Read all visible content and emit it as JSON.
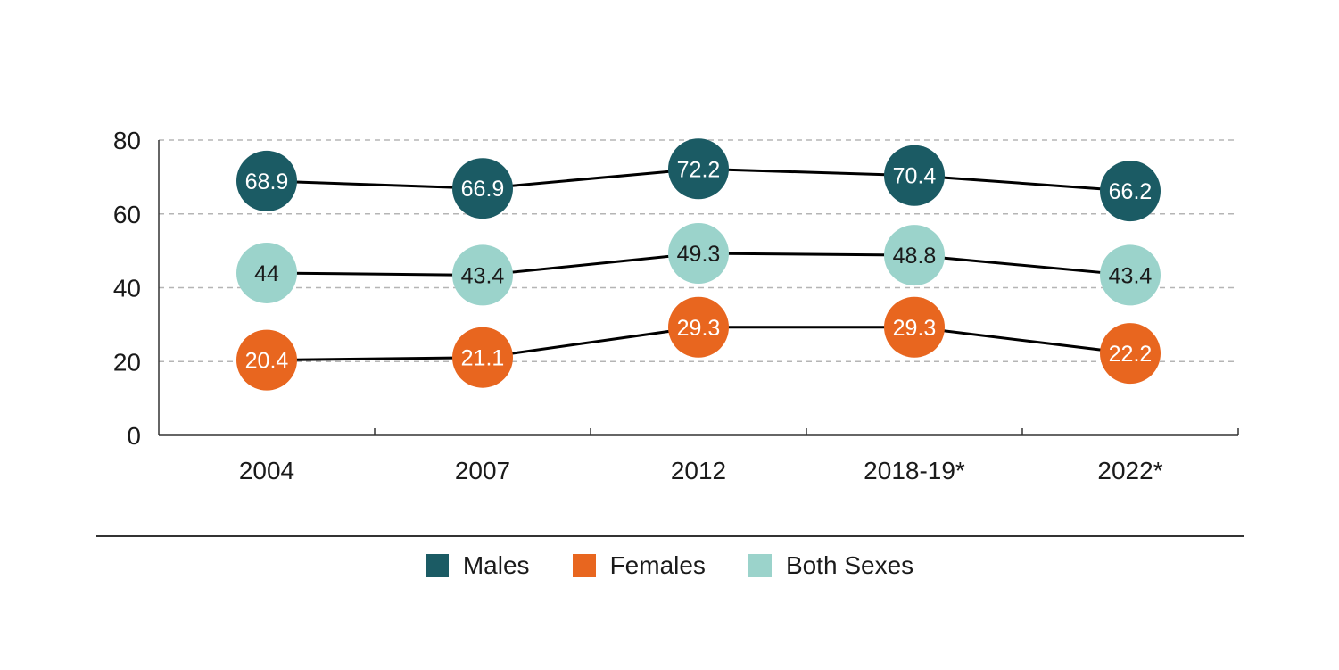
{
  "chart_data": {
    "type": "line",
    "categories": [
      "2004",
      "2007",
      "2012",
      "2018-19*",
      "2022*"
    ],
    "series": [
      {
        "name": "Males",
        "color": "#1b5b64",
        "label_color": "#ffffff",
        "values": [
          68.9,
          66.9,
          72.2,
          70.4,
          66.2
        ],
        "labels": [
          "68.9",
          "66.9",
          "72.2",
          "70.4",
          "66.2"
        ]
      },
      {
        "name": "Females",
        "color": "#e8661f",
        "label_color": "#ffffff",
        "values": [
          20.4,
          21.1,
          29.3,
          29.3,
          22.2
        ],
        "labels": [
          "20.4",
          "21.1",
          "29.3",
          "29.3",
          "22.2"
        ]
      },
      {
        "name": "Both Sexes",
        "color": "#9bd3cb",
        "label_color": "#1a1a1a",
        "values": [
          44,
          43.4,
          49.3,
          48.8,
          43.4
        ],
        "labels": [
          "44",
          "43.4",
          "49.3",
          "48.8",
          "43.4"
        ]
      }
    ],
    "yticks": [
      "0",
      "20",
      "40",
      "60",
      "80"
    ],
    "ylim": [
      0,
      80
    ],
    "grid": true,
    "legend_position": "bottom-center",
    "line_color": "#000000"
  }
}
